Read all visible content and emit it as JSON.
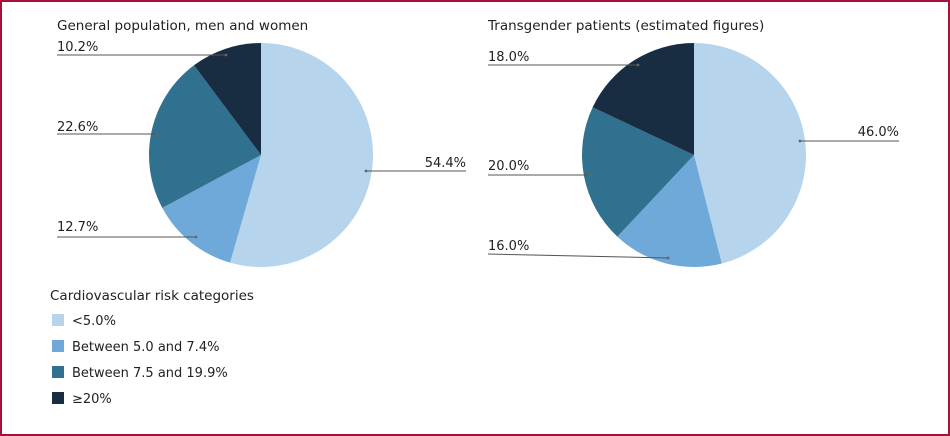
{
  "colors": {
    "frame": "#a8123a",
    "c1": "#b6d4ec",
    "c2": "#6fa9d9",
    "c3": "#2f718e",
    "c4": "#182d42"
  },
  "chart_data": [
    {
      "type": "pie",
      "title": "General population, men and women",
      "slices": [
        {
          "category": "<5.0%",
          "value": 54.4,
          "label": "54.4%",
          "color": "#b6d4ec"
        },
        {
          "category": "Between 5.0 and 7.4%",
          "value": 12.7,
          "label": "12.7%",
          "color": "#6fa9d9"
        },
        {
          "category": "Between 7.5 and 19.9%",
          "value": 22.6,
          "label": "22.6%",
          "color": "#2f718e"
        },
        {
          "category": "≥20%",
          "value": 10.2,
          "label": "10.2%",
          "color": "#182d42"
        }
      ]
    },
    {
      "type": "pie",
      "title": "Transgender patients (estimated figures)",
      "slices": [
        {
          "category": "<5.0%",
          "value": 46.0,
          "label": "46.0%",
          "color": "#b6d4ec"
        },
        {
          "category": "Between 5.0 and 7.4%",
          "value": 16.0,
          "label": "16.0%",
          "color": "#6fa9d9"
        },
        {
          "category": "Between 7.5 and 19.9%",
          "value": 20.0,
          "label": "20.0%",
          "color": "#2f718e"
        },
        {
          "category": "≥20%",
          "value": 18.0,
          "label": "18.0%",
          "color": "#182d42"
        }
      ]
    }
  ],
  "legend": {
    "title": "Cardiovascular risk categories",
    "placement": "bottom-left",
    "items": [
      {
        "label": "<5.0%",
        "color": "#b6d4ec"
      },
      {
        "label": "Between 5.0 and 7.4%",
        "color": "#6fa9d9"
      },
      {
        "label": "Between 7.5 and 19.9%",
        "color": "#2f718e"
      },
      {
        "label": "≥20%",
        "color": "#182d42"
      }
    ]
  }
}
